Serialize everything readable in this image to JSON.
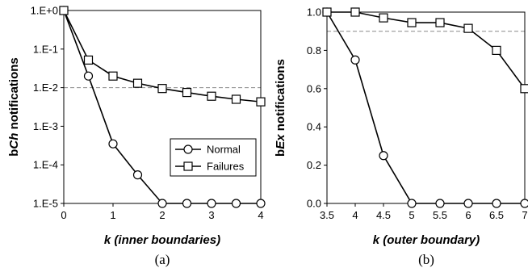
{
  "chart_data": [
    {
      "type": "line",
      "caption": "(a)",
      "xlabel_k": "k",
      "xlabel_rest": " (inner boundaries)",
      "ylabel_prefix": "b",
      "ylabel_italic": "Ch",
      "ylabel_rest": " notifications",
      "yscale": "log",
      "xlim": [
        0,
        4
      ],
      "ylim": [
        1e-05,
        1
      ],
      "xticks": [
        0,
        1,
        2,
        3,
        4
      ],
      "xtick_labels": [
        "0",
        "1",
        "2",
        "3",
        "4"
      ],
      "yticks": [
        1e-05,
        0.0001,
        0.001,
        0.01,
        0.1,
        1
      ],
      "ytick_labels": [
        "1.E-5",
        "1.E-4",
        "1.E-3",
        "1.E-2",
        "1.E-1",
        "1.E+0"
      ],
      "threshold": 0.01,
      "legend": {
        "placement": "bottom-right-inside",
        "entries": [
          "Normal",
          "Failures"
        ]
      },
      "series": [
        {
          "name": "Normal",
          "marker": "circle",
          "x": [
            0,
            0.5,
            1,
            1.5,
            2,
            2.5,
            3,
            3.5,
            4
          ],
          "y": [
            1,
            0.02,
            0.00035,
            5.5e-05,
            1e-05,
            1e-05,
            1e-05,
            1e-05,
            1e-05
          ]
        },
        {
          "name": "Failures",
          "marker": "square",
          "x": [
            0,
            0.5,
            1,
            1.5,
            2,
            2.5,
            3,
            3.5,
            4
          ],
          "y": [
            1,
            0.052,
            0.02,
            0.013,
            0.0095,
            0.0075,
            0.006,
            0.005,
            0.0043
          ]
        }
      ]
    },
    {
      "type": "line",
      "caption": "(b)",
      "xlabel_k": "k",
      "xlabel_rest": " (outer boundary)",
      "ylabel_prefix": "b",
      "ylabel_italic": "Ex",
      "ylabel_rest": " notifications",
      "yscale": "linear",
      "xlim": [
        3.5,
        7
      ],
      "ylim": [
        0,
        1
      ],
      "xticks": [
        3.5,
        4,
        4.5,
        5,
        5.5,
        6,
        6.5,
        7
      ],
      "xtick_labels": [
        "3.5",
        "4",
        "4.5",
        "5",
        "5.5",
        "6",
        "6.5",
        "7"
      ],
      "yticks": [
        0,
        0.2,
        0.4,
        0.6,
        0.8,
        1.0
      ],
      "ytick_labels": [
        "0.0",
        "0.2",
        "0.4",
        "0.6",
        "0.8",
        "1.0"
      ],
      "threshold": 0.9,
      "series": [
        {
          "name": "Normal",
          "marker": "circle",
          "x": [
            3.5,
            4,
            4.5,
            5,
            5.5,
            6,
            6.5,
            7
          ],
          "y": [
            1.0,
            0.75,
            0.25,
            0,
            0,
            0,
            0,
            0
          ]
        },
        {
          "name": "Failures",
          "marker": "square",
          "x": [
            3.5,
            4,
            4.5,
            5,
            5.5,
            6,
            6.5,
            7
          ],
          "y": [
            1.0,
            1.0,
            0.97,
            0.945,
            0.945,
            0.915,
            0.8,
            0.6
          ]
        }
      ]
    }
  ]
}
